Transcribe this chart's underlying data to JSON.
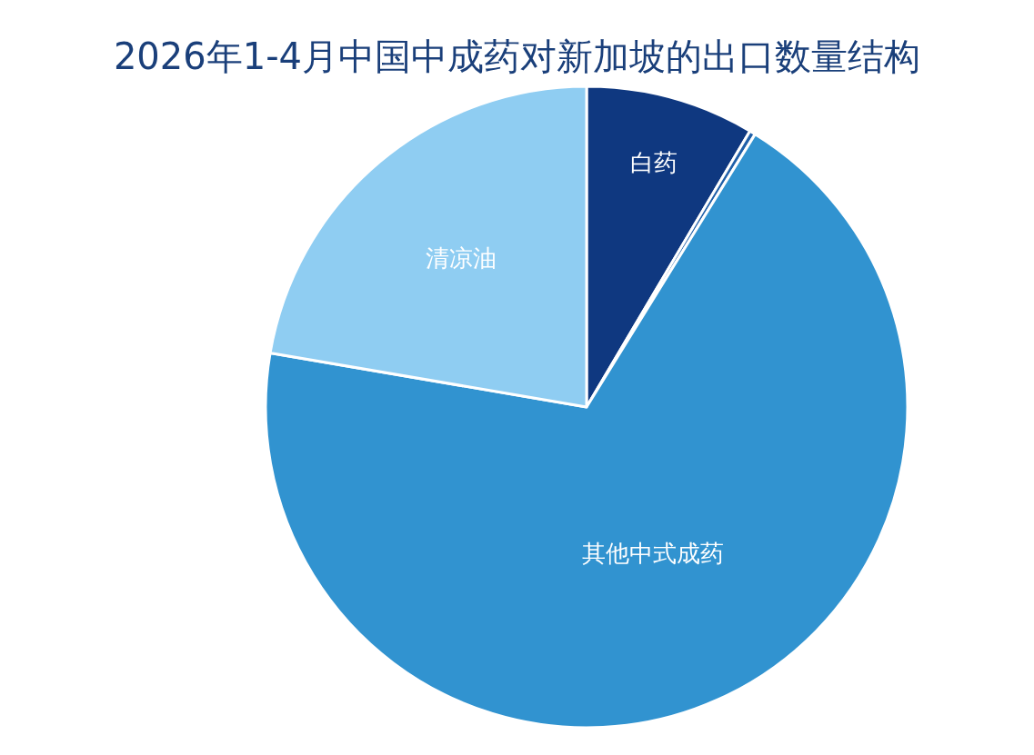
{
  "chart_data": {
    "type": "pie",
    "title": "2026年1-4月中国中成药对新加坡的出口数量结构",
    "categories": [
      "白药",
      null,
      "其他中式成药",
      "清凉油"
    ],
    "values": [
      8.5,
      0.3,
      68.9,
      22.3
    ],
    "colors": [
      "#0f3880",
      "#1f5fa8",
      "#3193d0",
      "#8fcdf2"
    ]
  }
}
